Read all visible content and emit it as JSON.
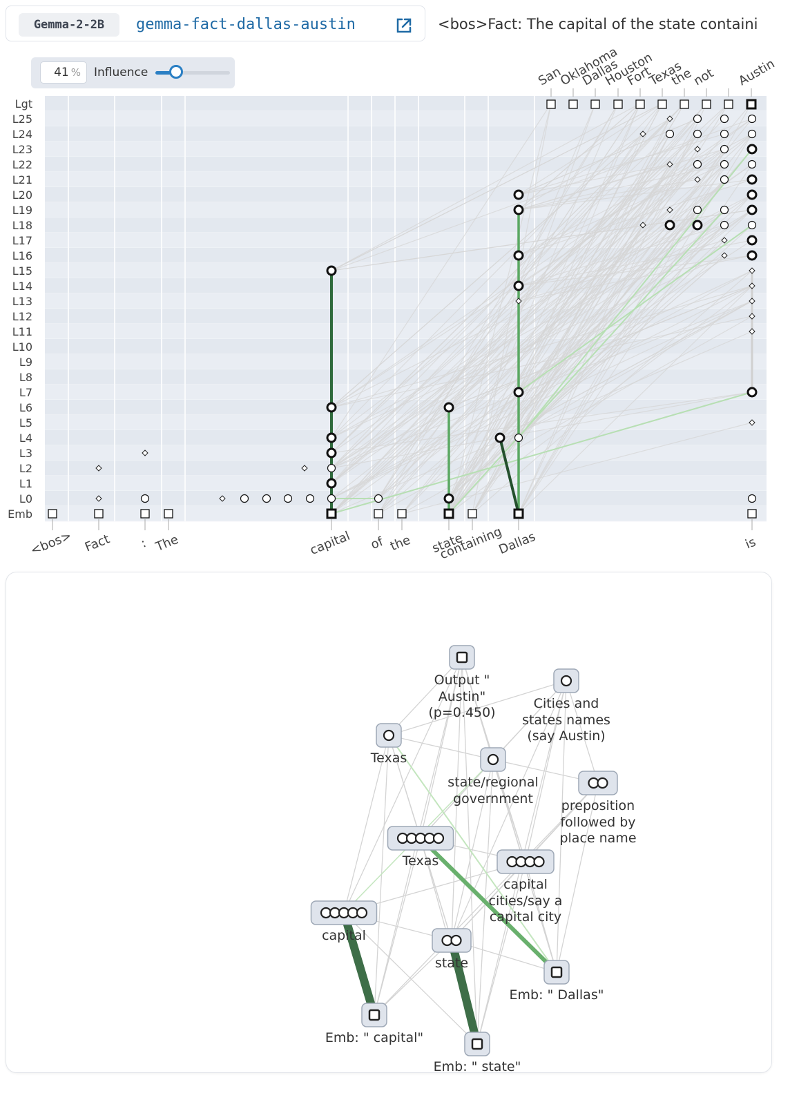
{
  "header": {
    "model": "Gemma-2-2B",
    "graph": "gemma-fact-dallas-austin",
    "prompt": "<bos>Fact: The capital of the state containi"
  },
  "influence": {
    "value": "41",
    "unit": "%",
    "label": "Influence"
  },
  "layers": [
    "Lgt",
    "L25",
    "L24",
    "L23",
    "L22",
    "L21",
    "L20",
    "L19",
    "L18",
    "L17",
    "L16",
    "L15",
    "L14",
    "L13",
    "L12",
    "L11",
    "L10",
    "L9",
    "L8",
    "L7",
    "L6",
    "L5",
    "L4",
    "L3",
    "L2",
    "L1",
    "L0",
    "Emb"
  ],
  "output_tokens": [
    "San",
    "Oklahoma",
    "Dallas",
    "Houston",
    "Fort",
    "Texas",
    "the",
    "not",
    "Austin"
  ],
  "input_tokens": [
    "<bos>",
    "Fact",
    ":",
    "The",
    "capital",
    "of",
    "the",
    "state",
    "containing",
    "Dallas",
    "is"
  ],
  "subgraph": {
    "nodes": [
      {
        "label": "Output \" Austin\" (p=0.450)"
      },
      {
        "label": "Cities and states names (say Austin)"
      },
      {
        "label": "Texas"
      },
      {
        "label": "state/regional government"
      },
      {
        "label": "preposition followed by place name"
      },
      {
        "label": "Texas"
      },
      {
        "label": "capital cities/say a capital city"
      },
      {
        "label": "capital"
      },
      {
        "label": "state"
      },
      {
        "label": "Emb: \" Dallas\""
      },
      {
        "label": "Emb: \" capital\""
      },
      {
        "label": "Emb: \" state\""
      }
    ]
  }
}
